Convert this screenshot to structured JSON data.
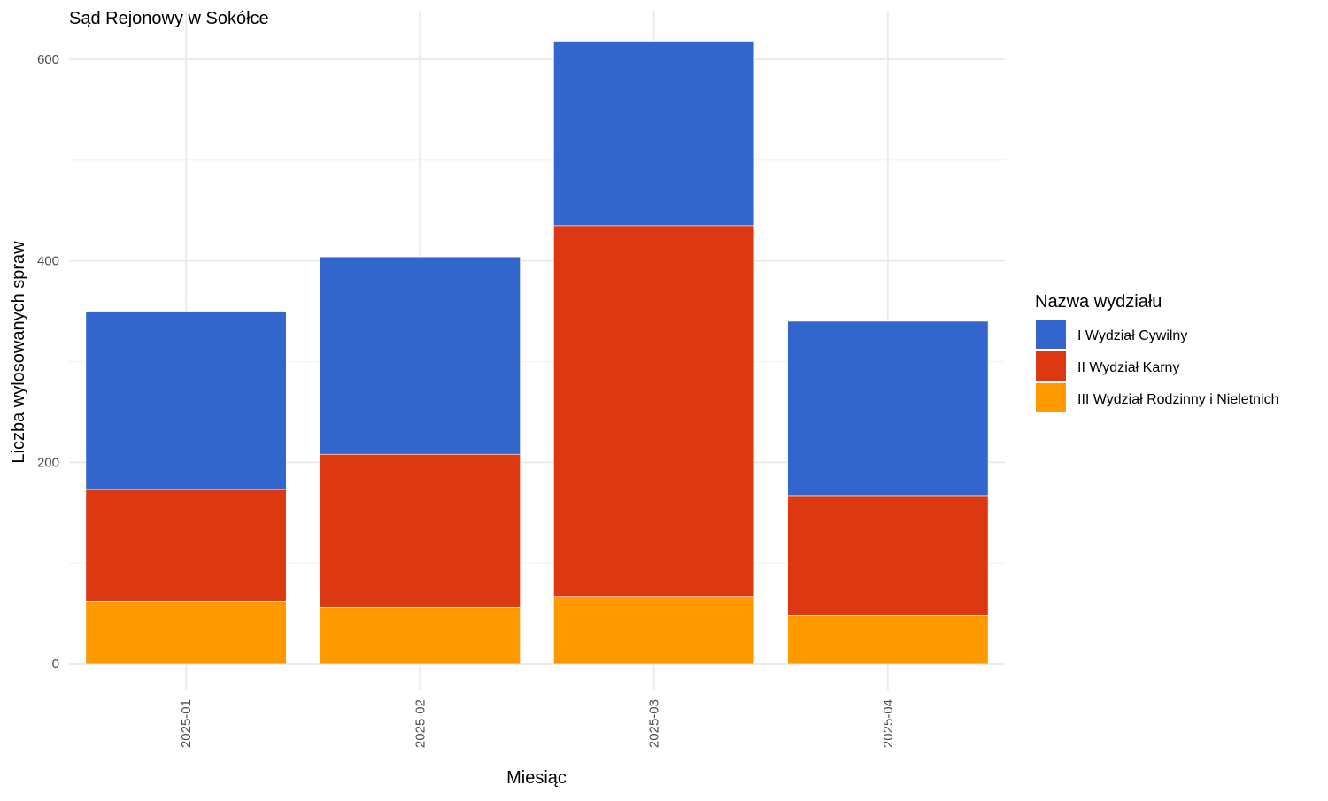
{
  "chart_data": {
    "type": "bar",
    "stacked": true,
    "title": "Sąd Rejonowy w Sokółce",
    "xlabel": "Miesiąc",
    "ylabel": "Liczba wylosowanych spraw",
    "categories": [
      "2025-01",
      "2025-02",
      "2025-03",
      "2025-04"
    ],
    "ylim": [
      0,
      650
    ],
    "yticks": [
      0,
      200,
      400,
      600
    ],
    "grid": true,
    "legend": {
      "title": "Nazwa wydziału",
      "placement": "right"
    },
    "series": [
      {
        "name": "III Wydział Rodzinny i Nieletnich",
        "color": "#FF9900",
        "values": [
          62,
          56,
          67,
          48
        ]
      },
      {
        "name": "II Wydział Karny",
        "color": "#DC3912",
        "values": [
          111,
          152,
          368,
          119
        ]
      },
      {
        "name": "I Wydział Cywilny",
        "color": "#3366CC",
        "values": [
          177,
          196,
          183,
          173
        ]
      }
    ],
    "legend_order": [
      "I Wydział Cywilny",
      "II Wydział Karny",
      "III Wydział Rodzinny i Nieletnich"
    ]
  }
}
